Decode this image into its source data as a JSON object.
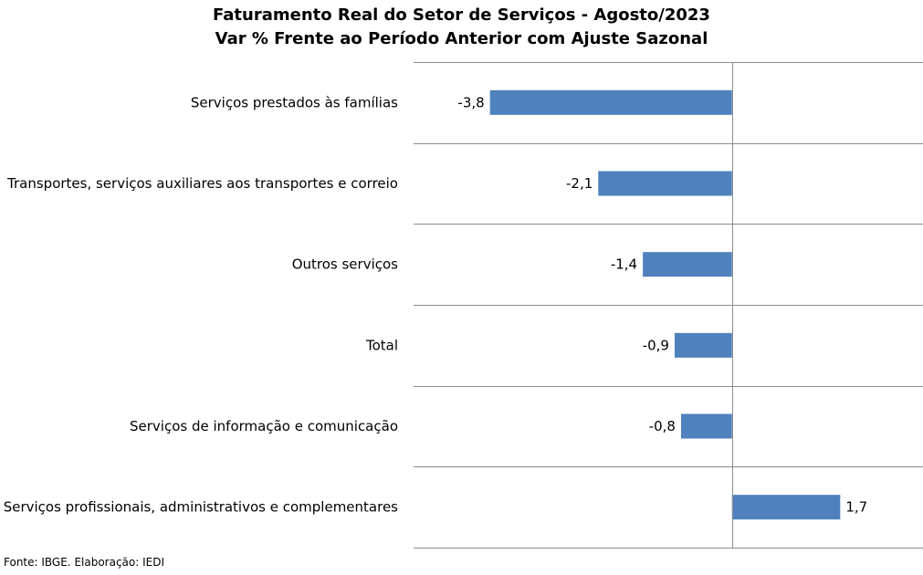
{
  "chart_data": {
    "type": "bar",
    "orientation": "horizontal",
    "title": "Faturamento Real do Setor de Serviços - Agosto/2023",
    "subtitle": "Var % Frente ao Período Anterior com Ajuste Sazonal",
    "categories": [
      "Serviços prestados às famílias",
      "Transportes, serviços auxiliares aos transportes e correio",
      "Outros serviços",
      "Total",
      "Serviços de informação e comunicação",
      "Serviços profissionais, administrativos e complementares"
    ],
    "values": [
      -3.8,
      -2.1,
      -1.4,
      -0.9,
      -0.8,
      1.7
    ],
    "value_labels": [
      "-3,8",
      "-2,1",
      "-1,4",
      "-0,9",
      "-0,8",
      "1,7"
    ],
    "xlim": [
      -5,
      3
    ],
    "bar_color": "#4f81bd",
    "grid": "horizontal separators",
    "legend": "none"
  },
  "source": "Fonte: IBGE. Elaboração: IEDI"
}
